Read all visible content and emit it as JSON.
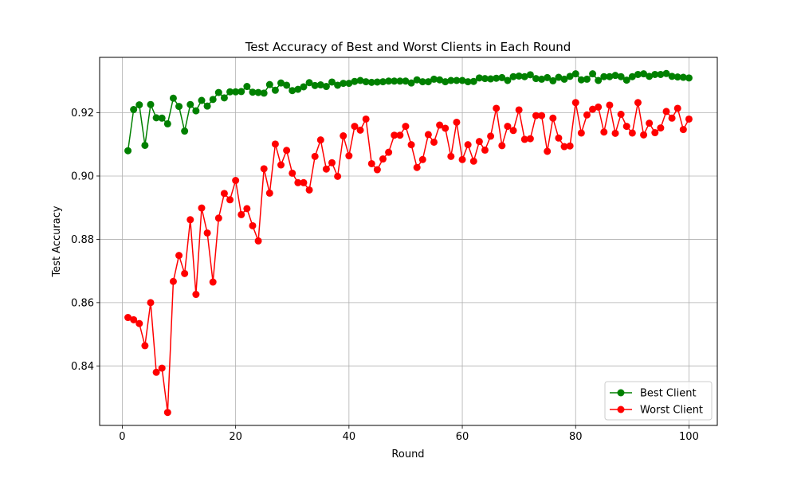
{
  "chart_data": {
    "type": "line",
    "title": "Test Accuracy of Best and Worst Clients in Each Round",
    "xlabel": "Round",
    "ylabel": "Test Accuracy",
    "xlim": [
      -4,
      105
    ],
    "ylim": [
      0.8212,
      0.9375
    ],
    "xticks": [
      0,
      20,
      40,
      60,
      80,
      100
    ],
    "yticks": [
      0.84,
      0.86,
      0.88,
      0.9,
      0.92
    ],
    "ytick_labels": [
      "0.84",
      "0.86",
      "0.88",
      "0.90",
      "0.92"
    ],
    "xtick_labels": [
      "0",
      "20",
      "40",
      "60",
      "80",
      "100"
    ],
    "grid": true,
    "legend_position": "lower-right",
    "x": [
      1,
      2,
      3,
      4,
      5,
      6,
      7,
      8,
      9,
      10,
      11,
      12,
      13,
      14,
      15,
      16,
      17,
      18,
      19,
      20,
      21,
      22,
      23,
      24,
      25,
      26,
      27,
      28,
      29,
      30,
      31,
      32,
      33,
      34,
      35,
      36,
      37,
      38,
      39,
      40,
      41,
      42,
      43,
      44,
      45,
      46,
      47,
      48,
      49,
      50,
      51,
      52,
      53,
      54,
      55,
      56,
      57,
      58,
      59,
      60,
      61,
      62,
      63,
      64,
      65,
      66,
      67,
      68,
      69,
      70,
      71,
      72,
      73,
      74,
      75,
      76,
      77,
      78,
      79,
      80,
      81,
      82,
      83,
      84,
      85,
      86,
      87,
      88,
      89,
      90,
      91,
      92,
      93,
      94,
      95,
      96,
      97,
      98,
      99,
      100
    ],
    "series": [
      {
        "name": "Best Client",
        "color": "#008000",
        "values": [
          0.908,
          0.921,
          0.9225,
          0.9097,
          0.9226,
          0.9184,
          0.9183,
          0.9165,
          0.9246,
          0.922,
          0.9142,
          0.9226,
          0.9206,
          0.9239,
          0.9221,
          0.9242,
          0.9264,
          0.9247,
          0.9266,
          0.9266,
          0.9267,
          0.9283,
          0.9265,
          0.9264,
          0.9262,
          0.9289,
          0.9271,
          0.9294,
          0.9287,
          0.927,
          0.9274,
          0.9282,
          0.9295,
          0.9286,
          0.9288,
          0.9283,
          0.9297,
          0.9287,
          0.9293,
          0.9293,
          0.9299,
          0.9302,
          0.9298,
          0.9296,
          0.9297,
          0.9298,
          0.93,
          0.93,
          0.93,
          0.93,
          0.9294,
          0.9304,
          0.9298,
          0.9298,
          0.9306,
          0.9304,
          0.9298,
          0.9302,
          0.9302,
          0.9302,
          0.9298,
          0.9299,
          0.931,
          0.9308,
          0.9307,
          0.9309,
          0.9311,
          0.9302,
          0.9314,
          0.9316,
          0.9314,
          0.932,
          0.9308,
          0.9306,
          0.9311,
          0.9301,
          0.9312,
          0.9306,
          0.9315,
          0.9323,
          0.9304,
          0.9306,
          0.9323,
          0.9302,
          0.9314,
          0.9314,
          0.9318,
          0.9314,
          0.9303,
          0.9314,
          0.9321,
          0.9323,
          0.9315,
          0.9321,
          0.9321,
          0.9324,
          0.9315,
          0.9313,
          0.9312,
          0.931
        ]
      },
      {
        "name": "Worst Client",
        "color": "#ff0000",
        "values": [
          0.8553,
          0.8546,
          0.8534,
          0.8464,
          0.86,
          0.838,
          0.8393,
          0.8253,
          0.8667,
          0.8749,
          0.8692,
          0.8862,
          0.8626,
          0.8899,
          0.882,
          0.8665,
          0.8867,
          0.8945,
          0.8925,
          0.8986,
          0.8878,
          0.8897,
          0.8843,
          0.8795,
          0.9023,
          0.8946,
          0.9101,
          0.9035,
          0.9081,
          0.9009,
          0.8979,
          0.8979,
          0.8956,
          0.9062,
          0.9114,
          0.9022,
          0.9042,
          0.8999,
          0.9127,
          0.9064,
          0.9157,
          0.9145,
          0.918,
          0.9039,
          0.902,
          0.9054,
          0.9075,
          0.9129,
          0.9129,
          0.9157,
          0.9099,
          0.9027,
          0.9052,
          0.9131,
          0.9107,
          0.9161,
          0.9151,
          0.9062,
          0.917,
          0.9052,
          0.9099,
          0.9047,
          0.9109,
          0.9082,
          0.9126,
          0.9214,
          0.9096,
          0.9157,
          0.9144,
          0.9209,
          0.9116,
          0.9118,
          0.9191,
          0.9191,
          0.9078,
          0.9183,
          0.912,
          0.9093,
          0.9095,
          0.9232,
          0.9136,
          0.9193,
          0.9211,
          0.9218,
          0.9139,
          0.9224,
          0.9135,
          0.9195,
          0.9157,
          0.9136,
          0.9232,
          0.913,
          0.9167,
          0.9137,
          0.9152,
          0.9204,
          0.9183,
          0.9214,
          0.9147,
          0.918
        ]
      }
    ]
  }
}
